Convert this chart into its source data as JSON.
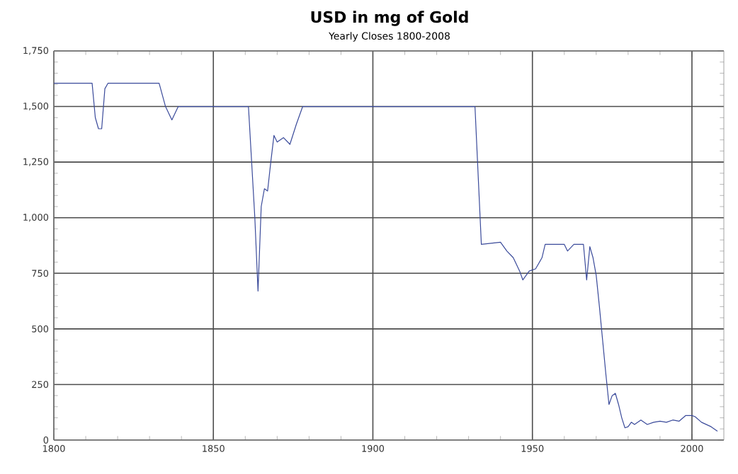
{
  "chart_data": {
    "type": "line",
    "title": "USD in mg of Gold",
    "subtitle": "Yearly Closes 1800-2008",
    "x": [
      1800,
      1812,
      1813,
      1814,
      1815,
      1816,
      1817,
      1833,
      1835,
      1837,
      1839,
      1861,
      1862,
      1863,
      1864,
      1865,
      1866,
      1867,
      1868,
      1869,
      1870,
      1872,
      1874,
      1876,
      1878,
      1932,
      1934,
      1940,
      1942,
      1944,
      1946,
      1947,
      1949,
      1951,
      1953,
      1954,
      1960,
      1961,
      1963,
      1966,
      1967,
      1968,
      1969,
      1970,
      1971,
      1972,
      1973,
      1974,
      1975,
      1976,
      1977,
      1978,
      1979,
      1980,
      1981,
      1982,
      1984,
      1986,
      1988,
      1990,
      1992,
      1994,
      1996,
      1998,
      2000,
      2001,
      2003,
      2006,
      2008
    ],
    "values": [
      1605,
      1605,
      1450,
      1400,
      1400,
      1580,
      1605,
      1605,
      1500,
      1440,
      1500,
      1500,
      1250,
      1000,
      670,
      1050,
      1130,
      1120,
      1250,
      1370,
      1340,
      1360,
      1330,
      1420,
      1500,
      1500,
      880,
      890,
      850,
      820,
      760,
      720,
      760,
      770,
      820,
      880,
      880,
      850,
      880,
      880,
      720,
      870,
      820,
      740,
      600,
      450,
      300,
      160,
      200,
      210,
      160,
      100,
      55,
      60,
      80,
      70,
      90,
      70,
      80,
      85,
      80,
      90,
      85,
      110,
      110,
      105,
      80,
      60,
      40
    ],
    "color": "#3a4a9a",
    "xlim": [
      1800,
      2010
    ],
    "xticks": [
      1800,
      1850,
      1900,
      1950,
      2000
    ],
    "ylim": [
      0,
      1750
    ],
    "yticks": [
      0,
      250,
      500,
      750,
      {
        "value": 1000,
        "label": "1,000"
      },
      {
        "value": 1250,
        "label": "1,250"
      },
      {
        "value": 1500,
        "label": "1,500"
      },
      {
        "value": 1750,
        "label": "1,750"
      }
    ],
    "grid": true
  }
}
